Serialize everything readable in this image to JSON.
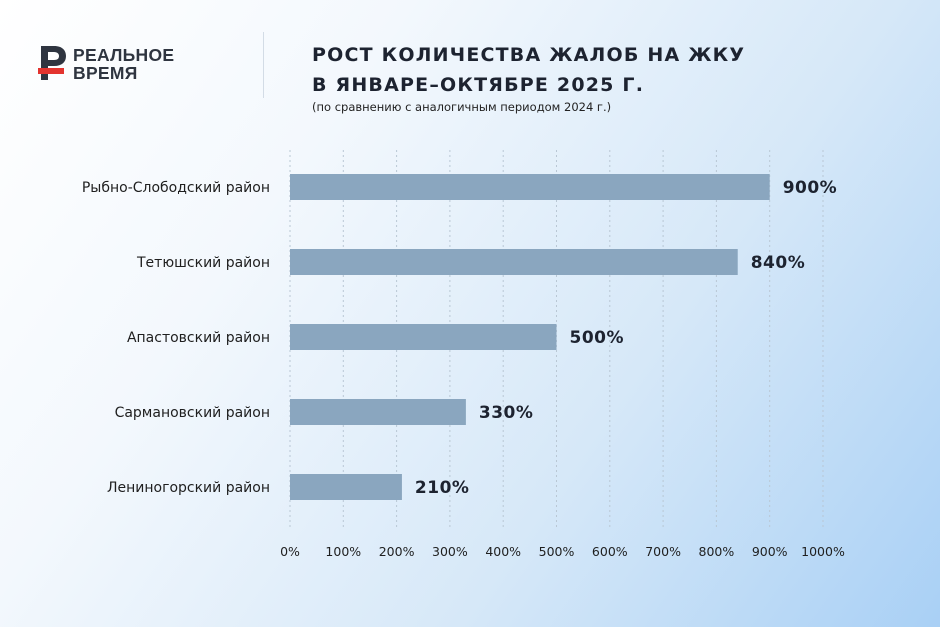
{
  "brand": {
    "line1": "РЕАЛЬНОЕ",
    "line2": "ВРЕМЯ",
    "colors": {
      "dark": "#2f3540",
      "red": "#e3342f"
    }
  },
  "header": {
    "title_line1": "РОСТ КОЛИЧЕСТВА ЖАЛОБ НА ЖКУ",
    "title_line2": "В ЯНВАРЕ–ОКТЯБРЕ 2025 Г.",
    "subtitle": "(по сравнению с аналогичным периодом 2024 г.)"
  },
  "colors": {
    "bar": "#8aa6bf",
    "grid": "#b9c7d4"
  },
  "chart_data": {
    "type": "bar",
    "orientation": "horizontal",
    "title": "РОСТ КОЛИЧЕСТВА ЖАЛОБ НА ЖКУ В ЯНВАРЕ–ОКТЯБРЕ 2025 Г.",
    "subtitle": "(по сравнению с аналогичным периодом 2024 г.)",
    "categories": [
      "Рыбно-Слободский район",
      "Тетюшский район",
      "Апастовский район",
      "Сармановский район",
      "Лениногорский район"
    ],
    "values": [
      900,
      840,
      500,
      330,
      210
    ],
    "value_labels": [
      "900%",
      "840%",
      "500%",
      "330%",
      "210%"
    ],
    "xlim": [
      0,
      1000
    ],
    "xticks": [
      0,
      100,
      200,
      300,
      400,
      500,
      600,
      700,
      800,
      900,
      1000
    ],
    "xtick_labels": [
      "0%",
      "100%",
      "200%",
      "300%",
      "400%",
      "500%",
      "600%",
      "700%",
      "800%",
      "900%",
      "1000%"
    ],
    "grid": "vertical dashed",
    "xlabel": "",
    "ylabel": ""
  }
}
